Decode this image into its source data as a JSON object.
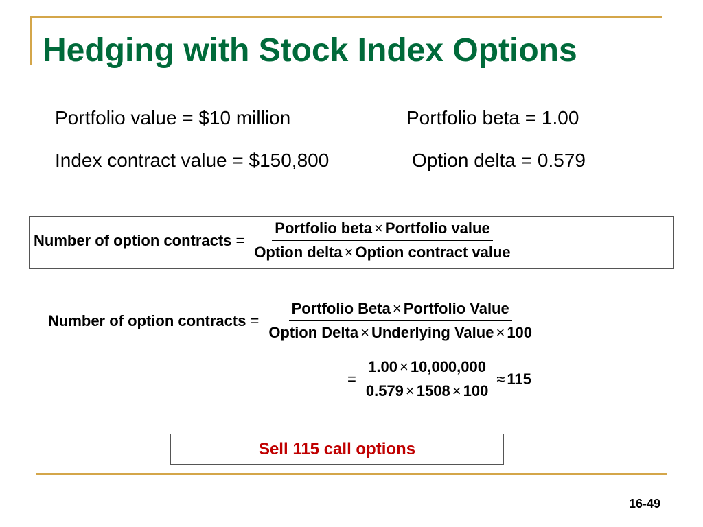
{
  "slide": {
    "title": "Hedging with Stock Index Options",
    "given": {
      "portfolio_value": "Portfolio value = $10 million",
      "portfolio_beta": "Portfolio beta =  1.00",
      "index_contract_value": "Index contract value = $150,800",
      "option_delta": "Option delta = 0.579"
    },
    "formula": {
      "lhs": "Number of option contracts",
      "equals": "=",
      "times": "×",
      "num_a": "Portfolio beta",
      "num_b": "Portfolio  value",
      "den_a": "Option delta",
      "den_b": "Option contract  value"
    },
    "calc": {
      "lhs": "Number of option contracts",
      "equals": "=",
      "times": "×",
      "approx": "≈",
      "num_a": "Portfolio Beta",
      "num_b": "Portfolio  Value",
      "den_a": "Option Delta",
      "den_b": "Underlying  Value",
      "den_c": "100",
      "step_num_a": "1.00",
      "step_num_b": "10,000,000",
      "step_den_a": "0.579",
      "step_den_b": "1508",
      "step_den_c": "100",
      "result": "115"
    },
    "conclusion": "Sell 115 call options",
    "page_number": "16-49"
  },
  "colors": {
    "title": "#006a3a",
    "rule": "#d4a64a",
    "conclusion": "#c00000"
  }
}
